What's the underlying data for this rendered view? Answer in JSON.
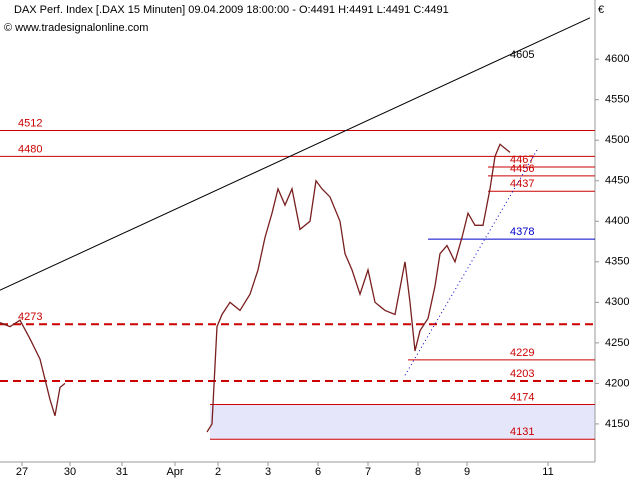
{
  "header": {
    "title": "DAX Perf. Index [.DAX  15 Minuten] 09.04.2009 18:00:00 - O:4491 H:4491 L:4491 C:4491",
    "source": "© www.tradesignalonline.com",
    "currency": "€"
  },
  "chart_data": {
    "type": "line",
    "xlim": [
      0,
      119
    ],
    "ylim": [
      4103,
      4673
    ],
    "xticks": [
      {
        "value": 4.4,
        "label": "27"
      },
      {
        "value": 14,
        "label": "30"
      },
      {
        "value": 24.4,
        "label": "31"
      },
      {
        "value": 35,
        "label": "Apr"
      },
      {
        "value": 43.6,
        "label": "2"
      },
      {
        "value": 53.6,
        "label": "3"
      },
      {
        "value": 63.6,
        "label": "6"
      },
      {
        "value": 73.6,
        "label": "7"
      },
      {
        "value": 83.6,
        "label": "8"
      },
      {
        "value": 93.4,
        "label": "9"
      },
      {
        "value": 109.6,
        "label": "11"
      }
    ],
    "yticks": [
      4150,
      4200,
      4250,
      4300,
      4350,
      4400,
      4450,
      4500,
      4550,
      4600
    ],
    "x": [
      0,
      2,
      4,
      6,
      8,
      10,
      11,
      12,
      13,
      30,
      41.4,
      42.4,
      43.4,
      44.4,
      46,
      48,
      50,
      51.6,
      53,
      54.4,
      55.6,
      57,
      58.4,
      60,
      62,
      63.2,
      64.4,
      66,
      68,
      69,
      70.4,
      72,
      73.6,
      75,
      77,
      79,
      81,
      82,
      83,
      84,
      85.6,
      87,
      88,
      89.4,
      91,
      92.4,
      93.6,
      95,
      96.6,
      98,
      99,
      100,
      101,
      102
    ],
    "series": [
      {
        "name": "DAX",
        "color": "#7a1f1f",
        "values": [
          4275,
          4270,
          4278,
          4255,
          4230,
          4180,
          4160,
          4195,
          4200,
          null,
          4140,
          4150,
          4270,
          4285,
          4300,
          4290,
          4310,
          4340,
          4380,
          4410,
          4440,
          4420,
          4440,
          4390,
          4400,
          4450,
          4440,
          4430,
          4400,
          4360,
          4340,
          4310,
          4340,
          4300,
          4290,
          4285,
          4350,
          4300,
          4240,
          4265,
          4280,
          4320,
          4360,
          4370,
          4350,
          4380,
          4410,
          4395,
          4395,
          4440,
          4480,
          4495,
          4490,
          4485
        ]
      }
    ],
    "levels": [
      {
        "value": 4512,
        "color": "#cc0000",
        "dashed": false,
        "x_start": 0,
        "label_at": "start"
      },
      {
        "value": 4480,
        "color": "#cc0000",
        "dashed": false,
        "x_start": 0,
        "label_at": "start"
      },
      {
        "value": 4467,
        "color": "#cc0000",
        "dashed": false,
        "x_start": 97.6,
        "label_at": "end"
      },
      {
        "value": 4456,
        "color": "#cc0000",
        "dashed": false,
        "x_start": 97.6,
        "label_at": "end"
      },
      {
        "value": 4437,
        "color": "#cc0000",
        "dashed": false,
        "x_start": 97.6,
        "label_at": "end"
      },
      {
        "value": 4378,
        "color": "#0000cc",
        "dashed": false,
        "x_start": 85.6,
        "label_at": "end"
      },
      {
        "value": 4273,
        "color": "#cc0000",
        "dashed": true,
        "x_start": 0,
        "label_at": "start"
      },
      {
        "value": 4229,
        "color": "#cc0000",
        "dashed": false,
        "x_start": 81.6,
        "label_at": "end"
      },
      {
        "value": 4203,
        "color": "#cc0000",
        "dashed": true,
        "x_start": 0,
        "label_at": "end"
      },
      {
        "value": 4174,
        "color": "#cc0000",
        "dashed": false,
        "x_start": 42,
        "label_at": "end"
      },
      {
        "value": 4131,
        "color": "#cc0000",
        "dashed": false,
        "x_start": 42,
        "label_at": "end"
      }
    ],
    "band": {
      "values": [
        4131,
        4174
      ],
      "color": "#e6e6fa",
      "x_start": 42
    },
    "trendlines": [
      {
        "x": [
          0,
          118
        ],
        "values": [
          4315,
          4651
        ],
        "color": "#000000",
        "dotted": false,
        "label": 4605
      },
      {
        "x": [
          81,
          107.6
        ],
        "values": [
          4210,
          4490
        ],
        "color": "#0000cc",
        "dotted": true
      }
    ]
  }
}
